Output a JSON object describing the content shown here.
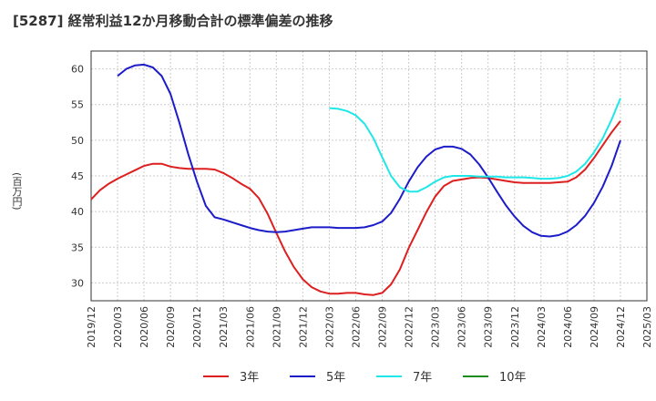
{
  "chart_data": {
    "type": "line",
    "title": "[5287]  経常利益12か月移動合計の標準偏差の推移",
    "ylabel": "(百万円)",
    "xlabel": "",
    "ylim": [
      27.5,
      62.5
    ],
    "yticks": [
      30,
      35,
      40,
      45,
      50,
      55,
      60
    ],
    "xlim": [
      "2019-12",
      "2025-03"
    ],
    "xticks": [
      "2019/12",
      "2020/03",
      "2020/06",
      "2020/09",
      "2020/12",
      "2021/03",
      "2021/06",
      "2021/09",
      "2021/12",
      "2022/03",
      "2022/06",
      "2022/09",
      "2022/12",
      "2023/03",
      "2023/06",
      "2023/09",
      "2023/12",
      "2024/03",
      "2024/06",
      "2024/09",
      "2024/12",
      "2025/03"
    ],
    "grid": true,
    "legend_position": "bottom",
    "series": [
      {
        "name": "3年",
        "color": "#dd1f1f",
        "x": [
          "2019-12",
          "2020-01",
          "2020-02",
          "2020-03",
          "2020-04",
          "2020-05",
          "2020-06",
          "2020-07",
          "2020-08",
          "2020-09",
          "2020-10",
          "2020-11",
          "2020-12",
          "2021-01",
          "2021-02",
          "2021-03",
          "2021-04",
          "2021-05",
          "2021-06",
          "2021-07",
          "2021-08",
          "2021-09",
          "2021-10",
          "2021-11",
          "2021-12",
          "2022-01",
          "2022-02",
          "2022-03",
          "2022-04",
          "2022-05",
          "2022-06",
          "2022-07",
          "2022-08",
          "2022-09",
          "2022-10",
          "2022-11",
          "2022-12",
          "2023-01",
          "2023-02",
          "2023-03",
          "2023-04",
          "2023-05",
          "2023-06",
          "2023-07",
          "2023-08",
          "2023-09",
          "2023-10",
          "2023-11",
          "2023-12",
          "2024-01",
          "2024-02",
          "2024-03",
          "2024-04",
          "2024-05",
          "2024-06",
          "2024-07",
          "2024-08",
          "2024-09",
          "2024-10",
          "2024-11",
          "2024-12"
        ],
        "y": [
          41.7,
          43.0,
          43.9,
          44.6,
          45.2,
          45.8,
          46.4,
          46.7,
          46.7,
          46.3,
          46.1,
          46.0,
          46.0,
          46.0,
          45.9,
          45.4,
          44.7,
          43.9,
          43.2,
          41.9,
          39.7,
          37.0,
          34.4,
          32.2,
          30.5,
          29.4,
          28.8,
          28.5,
          28.5,
          28.6,
          28.6,
          28.4,
          28.3,
          28.6,
          29.8,
          31.9,
          34.9,
          37.4,
          39.9,
          42.1,
          43.6,
          44.3,
          44.5,
          44.7,
          44.8,
          44.7,
          44.5,
          44.3,
          44.1,
          44.0,
          44.0,
          44.0,
          44.0,
          44.1,
          44.2,
          44.8,
          45.9,
          47.5,
          49.3,
          51.1,
          52.7
        ]
      },
      {
        "name": "5年",
        "color": "#1c1cc9",
        "x": [
          "2020-03",
          "2020-04",
          "2020-05",
          "2020-06",
          "2020-07",
          "2020-08",
          "2020-09",
          "2020-10",
          "2020-11",
          "2020-12",
          "2021-01",
          "2021-02",
          "2021-03",
          "2021-04",
          "2021-05",
          "2021-06",
          "2021-07",
          "2021-08",
          "2021-09",
          "2021-10",
          "2021-11",
          "2021-12",
          "2022-01",
          "2022-02",
          "2022-03",
          "2022-04",
          "2022-05",
          "2022-06",
          "2022-07",
          "2022-08",
          "2022-09",
          "2022-10",
          "2022-11",
          "2022-12",
          "2023-01",
          "2023-02",
          "2023-03",
          "2023-04",
          "2023-05",
          "2023-06",
          "2023-07",
          "2023-08",
          "2023-09",
          "2023-10",
          "2023-11",
          "2023-12",
          "2024-01",
          "2024-02",
          "2024-03",
          "2024-04",
          "2024-05",
          "2024-06",
          "2024-07",
          "2024-08",
          "2024-09",
          "2024-10",
          "2024-11",
          "2024-12"
        ],
        "y": [
          59.0,
          60.0,
          60.5,
          60.6,
          60.2,
          59.0,
          56.5,
          52.5,
          48.1,
          44.2,
          40.8,
          39.2,
          38.9,
          38.5,
          38.1,
          37.7,
          37.4,
          37.2,
          37.1,
          37.2,
          37.4,
          37.6,
          37.8,
          37.8,
          37.8,
          37.7,
          37.7,
          37.7,
          37.8,
          38.1,
          38.6,
          39.8,
          41.8,
          44.2,
          46.2,
          47.7,
          48.7,
          49.1,
          49.1,
          48.8,
          48.0,
          46.6,
          44.8,
          42.8,
          40.9,
          39.3,
          38.0,
          37.1,
          36.6,
          36.5,
          36.7,
          37.2,
          38.1,
          39.4,
          41.2,
          43.5,
          46.4,
          50.0
        ]
      },
      {
        "name": "7年",
        "color": "#1fe7e7",
        "x": [
          "2022-03",
          "2022-04",
          "2022-05",
          "2022-06",
          "2022-07",
          "2022-08",
          "2022-09",
          "2022-10",
          "2022-11",
          "2022-12",
          "2023-01",
          "2023-02",
          "2023-03",
          "2023-04",
          "2023-05",
          "2023-06",
          "2023-07",
          "2023-08",
          "2023-09",
          "2023-10",
          "2023-11",
          "2023-12",
          "2024-01",
          "2024-02",
          "2024-03",
          "2024-04",
          "2024-05",
          "2024-06",
          "2024-07",
          "2024-08",
          "2024-09",
          "2024-10",
          "2024-11",
          "2024-12"
        ],
        "y": [
          54.5,
          54.4,
          54.1,
          53.5,
          52.3,
          50.3,
          47.6,
          45.0,
          43.4,
          42.8,
          42.8,
          43.4,
          44.2,
          44.8,
          45.0,
          45.0,
          45.0,
          44.9,
          44.9,
          44.9,
          44.8,
          44.8,
          44.8,
          44.7,
          44.6,
          44.6,
          44.7,
          45.0,
          45.6,
          46.7,
          48.3,
          50.3,
          52.9,
          55.9
        ]
      },
      {
        "name": "10年",
        "color": "#1f8c1f",
        "x": [],
        "y": []
      }
    ]
  }
}
